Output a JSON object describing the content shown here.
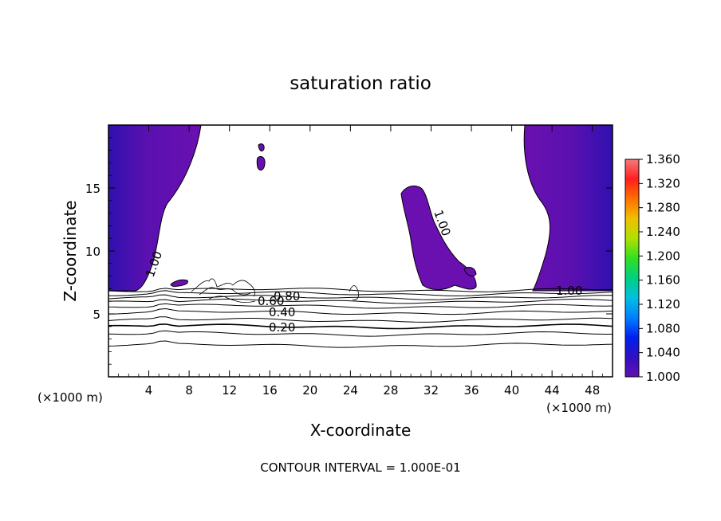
{
  "chart_data": {
    "type": "contour",
    "title": "saturation ratio",
    "xlabel": "X-coordinate",
    "ylabel": "Z-coordinate",
    "x_unit": "(×1000 m)",
    "y_unit": "(×1000 m)",
    "footer": "CONTOUR INTERVAL = 1.000E-01",
    "xlim": [
      0,
      50
    ],
    "ylim": [
      0,
      20
    ],
    "x_ticks": [
      "4",
      "8",
      "12",
      "16",
      "20",
      "24",
      "28",
      "32",
      "36",
      "40",
      "44",
      "48"
    ],
    "y_ticks": [
      "5",
      "10",
      "15"
    ],
    "colorbar": {
      "ticks": [
        "1.360",
        "1.320",
        "1.280",
        "1.240",
        "1.200",
        "1.160",
        "1.120",
        "1.080",
        "1.040",
        "1.000"
      ],
      "colors": [
        "#f47a7a",
        "#ff1e1e",
        "#ff7000",
        "#f0c000",
        "#b0e000",
        "#30e020",
        "#00d080",
        "#00c0e0",
        "#0080ff",
        "#0020f0",
        "#3010c0",
        "#6010b0"
      ]
    },
    "contour_labels": [
      "1.00",
      "1.00",
      "1.00",
      "0.80",
      "0.60",
      "0.40",
      "0.20"
    ],
    "contour_levels_z": [
      6.9,
      6.6,
      6.3,
      6.0,
      5.6,
      5.1,
      4.5,
      4.0,
      3.4,
      2.5
    ]
  }
}
